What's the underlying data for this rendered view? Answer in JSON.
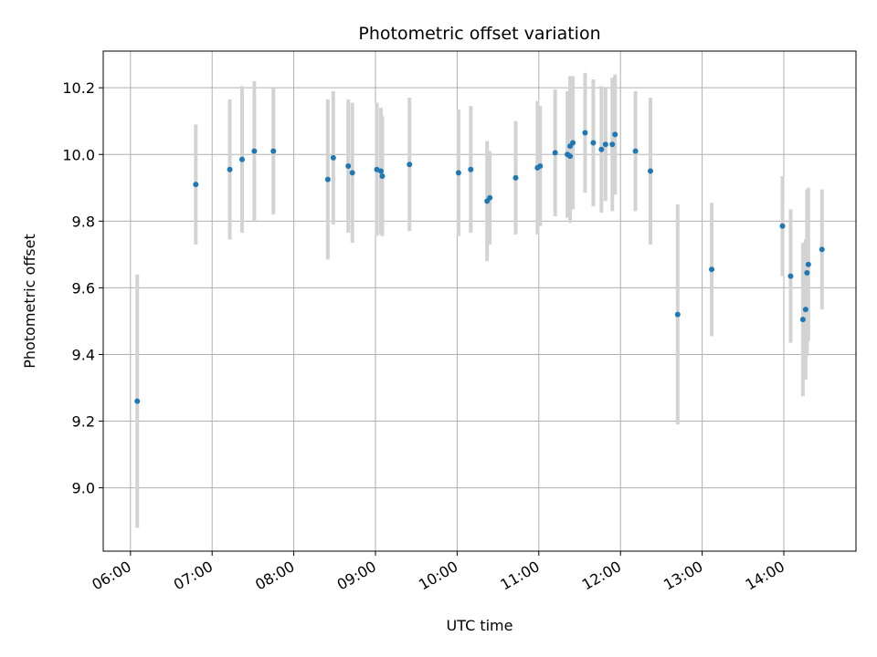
{
  "chart_data": {
    "type": "scatter",
    "title": "Photometric offset variation",
    "xlabel": "UTC time",
    "ylabel": "Photometric offset",
    "grid": true,
    "x_unit": "hours UTC",
    "xlim": [
      "05:40",
      "14:53"
    ],
    "ylim": [
      8.81,
      10.31
    ],
    "x_ticks": [
      "06:00",
      "07:00",
      "08:00",
      "09:00",
      "10:00",
      "11:00",
      "12:00",
      "13:00",
      "14:00"
    ],
    "y_ticks": [
      "9.0",
      "9.2",
      "9.4",
      "9.6",
      "9.8",
      "10.0",
      "10.2"
    ],
    "point_color": "#1f77b4",
    "errorbar_color": "#d3d3d3",
    "series": [
      {
        "x": [
          "06:05",
          "06:48",
          "07:13",
          "07:22",
          "07:31",
          "07:45",
          "08:25",
          "08:29",
          "08:40",
          "08:43",
          "09:01",
          "09:04",
          "09:05",
          "09:25",
          "10:01",
          "10:10",
          "10:22",
          "10:24",
          "10:43",
          "10:59",
          "11:01",
          "11:12",
          "11:21",
          "11:23",
          "11:23",
          "11:25",
          "11:34",
          "11:40",
          "11:46",
          "11:49",
          "11:54",
          "11:56",
          "12:11",
          "12:22",
          "12:42",
          "13:07",
          "13:59",
          "14:05",
          "14:14",
          "14:16",
          "14:17",
          "14:18",
          "14:28"
        ],
        "y": [
          9.26,
          9.91,
          9.955,
          9.985,
          10.01,
          10.01,
          9.925,
          9.99,
          9.965,
          9.945,
          9.955,
          9.95,
          9.935,
          9.97,
          9.945,
          9.955,
          9.86,
          9.87,
          9.93,
          9.96,
          9.965,
          10.005,
          10.0,
          10.025,
          9.995,
          10.035,
          10.065,
          10.035,
          10.015,
          10.03,
          10.03,
          10.06,
          10.01,
          9.95,
          9.52,
          9.655,
          9.785,
          9.635,
          9.505,
          9.535,
          9.645,
          9.67,
          9.715
        ],
        "yerr": [
          0.38,
          0.18,
          0.21,
          0.22,
          0.21,
          0.19,
          0.24,
          0.2,
          0.2,
          0.21,
          0.2,
          0.19,
          0.18,
          0.2,
          0.19,
          0.19,
          0.18,
          0.14,
          0.17,
          0.2,
          0.18,
          0.19,
          0.19,
          0.21,
          0.2,
          0.2,
          0.18,
          0.19,
          0.19,
          0.17,
          0.2,
          0.18,
          0.18,
          0.22,
          0.33,
          0.2,
          0.15,
          0.2,
          0.23,
          0.21,
          0.25,
          0.23,
          0.18
        ]
      }
    ]
  }
}
